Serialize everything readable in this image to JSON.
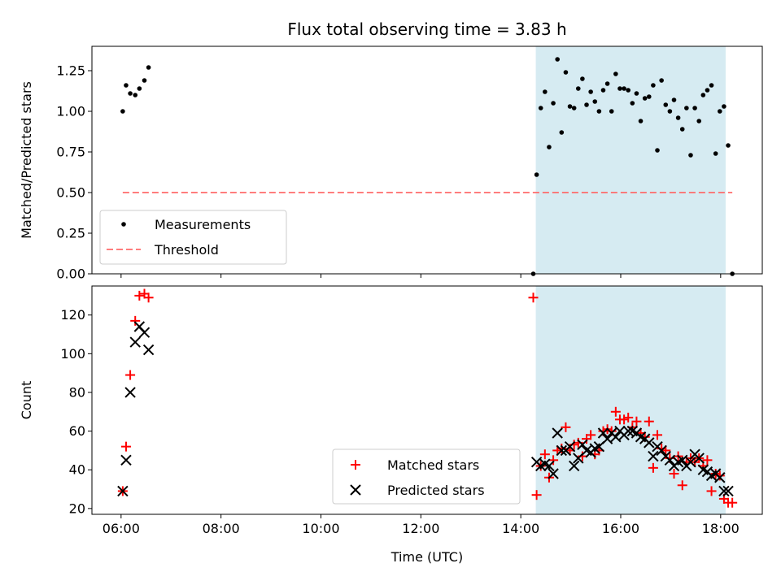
{
  "chart_data": [
    {
      "type": "scatter",
      "title": "Flux total observing time = 3.83 h",
      "xlabel": "",
      "ylabel": "Matched/Predicted stars",
      "xlim": [
        "05:25",
        "18:50"
      ],
      "ylim": [
        0,
        1.4
      ],
      "yticks": [
        0.0,
        0.25,
        0.5,
        0.75,
        1.0,
        1.25
      ],
      "ytick_labels": [
        "0.00",
        "0.25",
        "0.50",
        "0.75",
        "1.00",
        "1.25"
      ],
      "shaded_span": {
        "start": "14:18",
        "end": "18:06",
        "color": "#add8e6"
      },
      "legend_position": "lower-left",
      "series": [
        {
          "name": "Measurements",
          "kind": "scatter",
          "color": "#000000",
          "x": [
            "06:02",
            "06:06",
            "06:11",
            "06:17",
            "06:22",
            "06:28",
            "06:33",
            "14:15",
            "14:19",
            "14:24",
            "14:29",
            "14:34",
            "14:39",
            "14:44",
            "14:49",
            "14:54",
            "14:59",
            "15:04",
            "15:09",
            "15:14",
            "15:19",
            "15:24",
            "15:29",
            "15:34",
            "15:39",
            "15:44",
            "15:49",
            "15:54",
            "15:59",
            "16:04",
            "16:09",
            "16:14",
            "16:19",
            "16:24",
            "16:29",
            "16:34",
            "16:39",
            "16:44",
            "16:49",
            "16:54",
            "16:59",
            "17:04",
            "17:09",
            "17:14",
            "17:19",
            "17:24",
            "17:29",
            "17:34",
            "17:39",
            "17:44",
            "17:49",
            "17:54",
            "17:59",
            "18:04",
            "18:09",
            "18:14"
          ],
          "y": [
            1.0,
            1.16,
            1.11,
            1.1,
            1.14,
            1.19,
            1.27,
            0.0,
            0.61,
            1.02,
            1.12,
            0.78,
            1.05,
            1.32,
            0.87,
            1.24,
            1.03,
            1.02,
            1.14,
            1.2,
            1.04,
            1.12,
            1.06,
            1.0,
            1.13,
            1.17,
            1.0,
            1.23,
            1.14,
            1.14,
            1.13,
            1.05,
            1.11,
            0.94,
            1.08,
            1.09,
            1.16,
            0.76,
            1.19,
            1.04,
            1.0,
            1.07,
            0.96,
            0.89,
            1.02,
            0.73,
            1.02,
            0.94,
            1.1,
            1.13,
            1.16,
            0.74,
            1.0,
            1.03,
            0.79,
            0.0
          ]
        },
        {
          "name": "Threshold",
          "kind": "line",
          "dash": true,
          "color": "#ff6666",
          "x": [
            "06:02",
            "18:14"
          ],
          "y": [
            0.5,
            0.5
          ]
        }
      ]
    },
    {
      "type": "scatter",
      "title": "",
      "xlabel": "Time (UTC)",
      "ylabel": "Count",
      "xlim": [
        "05:25",
        "18:50"
      ],
      "ylim": [
        17,
        135
      ],
      "yticks": [
        20,
        40,
        60,
        80,
        100,
        120
      ],
      "ytick_labels": [
        "20",
        "40",
        "60",
        "80",
        "100",
        "120"
      ],
      "xticks": [
        "06:00",
        "08:00",
        "10:00",
        "12:00",
        "14:00",
        "16:00",
        "18:00"
      ],
      "xtick_labels": [
        "06:00",
        "08:00",
        "10:00",
        "12:00",
        "14:00",
        "16:00",
        "18:00"
      ],
      "shaded_span": {
        "start": "14:18",
        "end": "18:06",
        "color": "#add8e6"
      },
      "legend_position": "lower-center",
      "series": [
        {
          "name": "Matched stars",
          "marker": "plus",
          "color": "#ff0000",
          "x": [
            "06:02",
            "06:06",
            "06:11",
            "06:17",
            "06:22",
            "06:28",
            "06:33",
            "14:15",
            "14:19",
            "14:24",
            "14:29",
            "14:34",
            "14:39",
            "14:44",
            "14:49",
            "14:54",
            "14:59",
            "15:04",
            "15:09",
            "15:14",
            "15:19",
            "15:24",
            "15:29",
            "15:34",
            "15:39",
            "15:44",
            "15:49",
            "15:54",
            "15:59",
            "16:04",
            "16:09",
            "16:14",
            "16:19",
            "16:24",
            "16:29",
            "16:34",
            "16:39",
            "16:44",
            "16:49",
            "16:54",
            "16:59",
            "17:04",
            "17:09",
            "17:14",
            "17:19",
            "17:24",
            "17:29",
            "17:34",
            "17:39",
            "17:44",
            "17:49",
            "17:54",
            "17:59",
            "18:04",
            "18:09",
            "18:14"
          ],
          "y": [
            29,
            52,
            89,
            117,
            130,
            131,
            129,
            129,
            27,
            42,
            48,
            36,
            45,
            50,
            51,
            62,
            50,
            53,
            54,
            47,
            56,
            58,
            48,
            50,
            60,
            61,
            60,
            70,
            66,
            66,
            67,
            62,
            65,
            59,
            57,
            65,
            41,
            58,
            51,
            50,
            46,
            38,
            47,
            32,
            44,
            46,
            44,
            46,
            42,
            45,
            29,
            38,
            37,
            25,
            23,
            23
          ]
        },
        {
          "name": "Predicted stars",
          "marker": "x",
          "color": "#000000",
          "x": [
            "06:02",
            "06:06",
            "06:11",
            "06:17",
            "06:22",
            "06:28",
            "06:33",
            "14:19",
            "14:24",
            "14:29",
            "14:34",
            "14:39",
            "14:44",
            "14:49",
            "14:54",
            "14:59",
            "15:04",
            "15:09",
            "15:14",
            "15:19",
            "15:24",
            "15:29",
            "15:34",
            "15:39",
            "15:44",
            "15:49",
            "15:54",
            "15:59",
            "16:04",
            "16:09",
            "16:14",
            "16:19",
            "16:24",
            "16:29",
            "16:34",
            "16:39",
            "16:44",
            "16:49",
            "16:54",
            "16:59",
            "17:04",
            "17:09",
            "17:14",
            "17:19",
            "17:24",
            "17:29",
            "17:34",
            "17:39",
            "17:44",
            "17:49",
            "17:54",
            "17:59",
            "18:04",
            "18:09"
          ],
          "y": [
            29,
            45,
            80,
            106,
            114,
            111,
            102,
            44,
            42,
            43,
            42,
            38,
            59,
            50,
            50,
            52,
            42,
            46,
            53,
            50,
            49,
            51,
            52,
            59,
            56,
            59,
            57,
            60,
            58,
            60,
            60,
            59,
            57,
            56,
            54,
            47,
            52,
            50,
            47,
            45,
            42,
            44,
            45,
            42,
            44,
            48,
            46,
            40,
            39,
            37,
            38,
            36,
            29,
            29
          ]
        }
      ]
    }
  ]
}
